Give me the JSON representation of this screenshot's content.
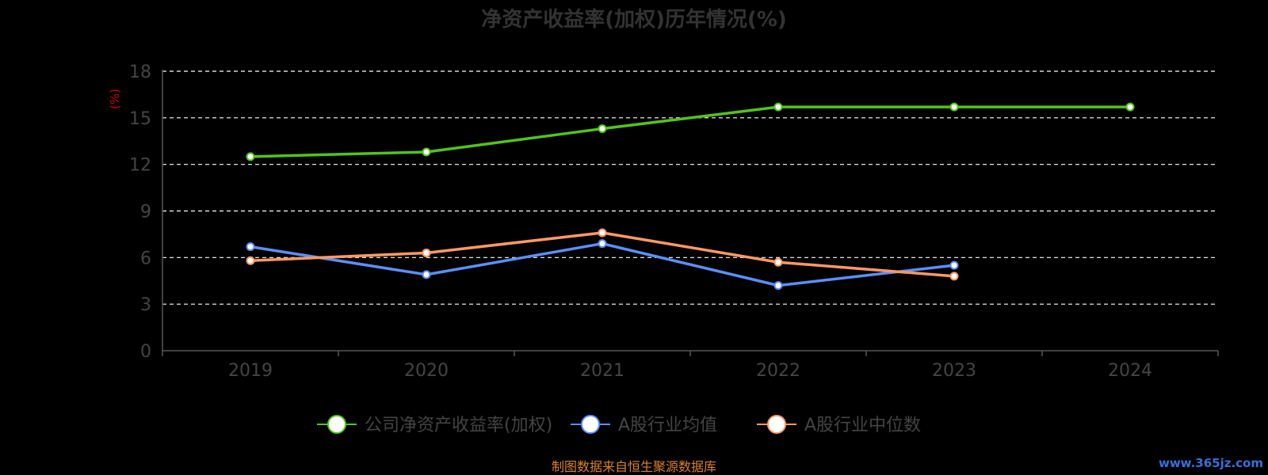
{
  "chart_data": {
    "type": "line",
    "title": "净资产收益率(加权)历年情况(%)",
    "ylabel": "(%)",
    "xlabel": "",
    "categories": [
      "2019",
      "2020",
      "2021",
      "2022",
      "2023",
      "2024"
    ],
    "ylim": [
      0,
      18
    ],
    "yticks": [
      "0",
      "3",
      "6",
      "9",
      "12",
      "15",
      "18"
    ],
    "grid": true,
    "legend_position": "bottom",
    "series": [
      {
        "name": "公司净资产收益率(加权)",
        "color": "#52c41a",
        "values": [
          12.5,
          12.8,
          14.3,
          15.7,
          15.7,
          15.7
        ]
      },
      {
        "name": "A股行业均值",
        "color": "#5b8ff9",
        "values": [
          6.7,
          4.9,
          6.9,
          4.2,
          5.5,
          null
        ]
      },
      {
        "name": "A股行业中位数",
        "color": "#ff9966",
        "values": [
          5.8,
          6.3,
          7.6,
          5.7,
          4.8,
          null
        ]
      }
    ]
  },
  "footer": {
    "source": "制图数据来自恒生聚源数据库",
    "watermark": "www.365jz.com"
  }
}
